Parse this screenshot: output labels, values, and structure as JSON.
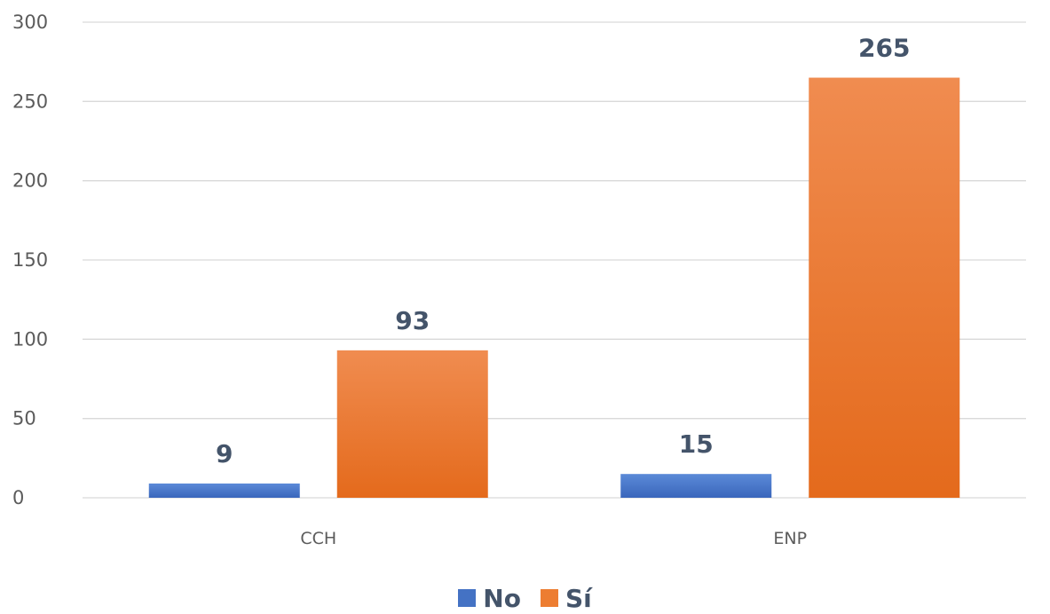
{
  "chart_data": {
    "type": "bar",
    "categories": [
      "CCH",
      "ENP"
    ],
    "series": [
      {
        "name": "No",
        "values": [
          9,
          15
        ],
        "color": "#4472c4"
      },
      {
        "name": "Sí",
        "values": [
          93,
          265
        ],
        "color": "#ed7d31"
      }
    ],
    "ylim": [
      0,
      300
    ],
    "yticks": [
      "0",
      "50",
      "100",
      "150",
      "200",
      "250",
      "300"
    ],
    "grid": true,
    "legend_position": "bottom"
  }
}
